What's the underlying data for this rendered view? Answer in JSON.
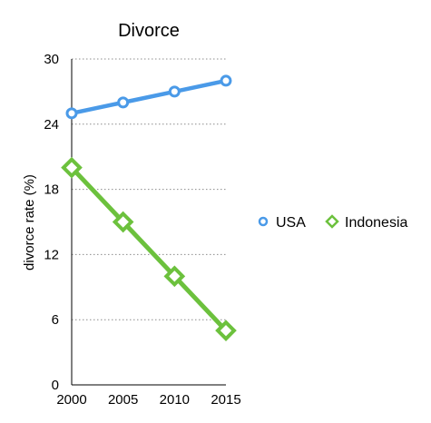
{
  "chart_data": {
    "type": "line",
    "title": "Divorce",
    "xlabel": "",
    "ylabel": "divorce rate (%)",
    "x": [
      2000,
      2005,
      2010,
      2015
    ],
    "x_ticks": [
      "2000",
      "2005",
      "2010",
      "2015"
    ],
    "ylim": [
      0,
      30
    ],
    "y_ticks": [
      "0",
      "6",
      "12",
      "18",
      "24",
      "30"
    ],
    "grid": "horizontal dotted",
    "legend_position": "right",
    "series": [
      {
        "name": "USA",
        "values": [
          25,
          26,
          27,
          28
        ],
        "color": "#4a9ae8",
        "marker": "circle"
      },
      {
        "name": "Indonesia",
        "values": [
          20,
          15,
          10,
          5
        ],
        "color": "#6cc13d",
        "marker": "diamond"
      }
    ]
  }
}
